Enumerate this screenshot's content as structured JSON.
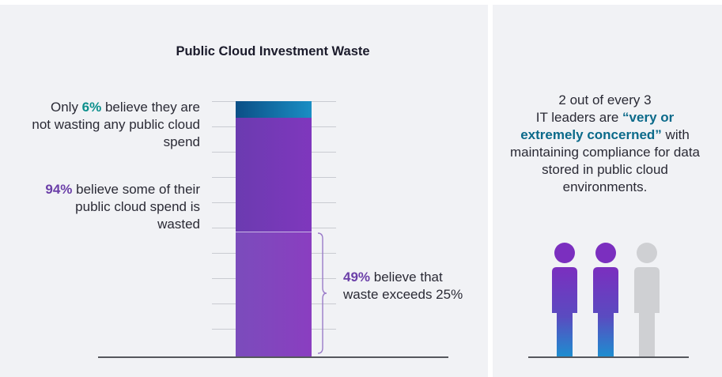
{
  "chart_data": {
    "type": "bar",
    "title": "Public Cloud Investment Waste",
    "categories": [
      "Public cloud spend"
    ],
    "series": [
      {
        "values": [
          6
        ]
      },
      {
        "values": [
          45
        ]
      },
      {
        "values": [
          49
        ]
      }
    ],
    "ylim": [
      0,
      100
    ],
    "annotations": {
      "six": {
        "pct": "6%",
        "prefix": "Only ",
        "text": " believe they are not wasting any public cloud spend"
      },
      "ninety_four": {
        "pct": "94%",
        "text": " believe some of their public cloud spend is wasted"
      },
      "forty_nine": {
        "pct": "49%",
        "text": " believe that waste exceeds 25%"
      }
    },
    "colors": {
      "not_wasting": "#0b4f86",
      "wasting": "#6b3bb0",
      "waste_over_25": "#8a3ec0"
    }
  },
  "right_panel": {
    "line1": "2 out of every 3",
    "line2_prefix": "IT leaders are ",
    "emphasis": "“very or extremely concerned”",
    "rest": "with maintaining compliance for data stored in public cloud environments.",
    "people": [
      {
        "color": "purple-gradient"
      },
      {
        "color": "purple-gradient"
      },
      {
        "color": "gray"
      }
    ],
    "icon": "person-icon"
  }
}
